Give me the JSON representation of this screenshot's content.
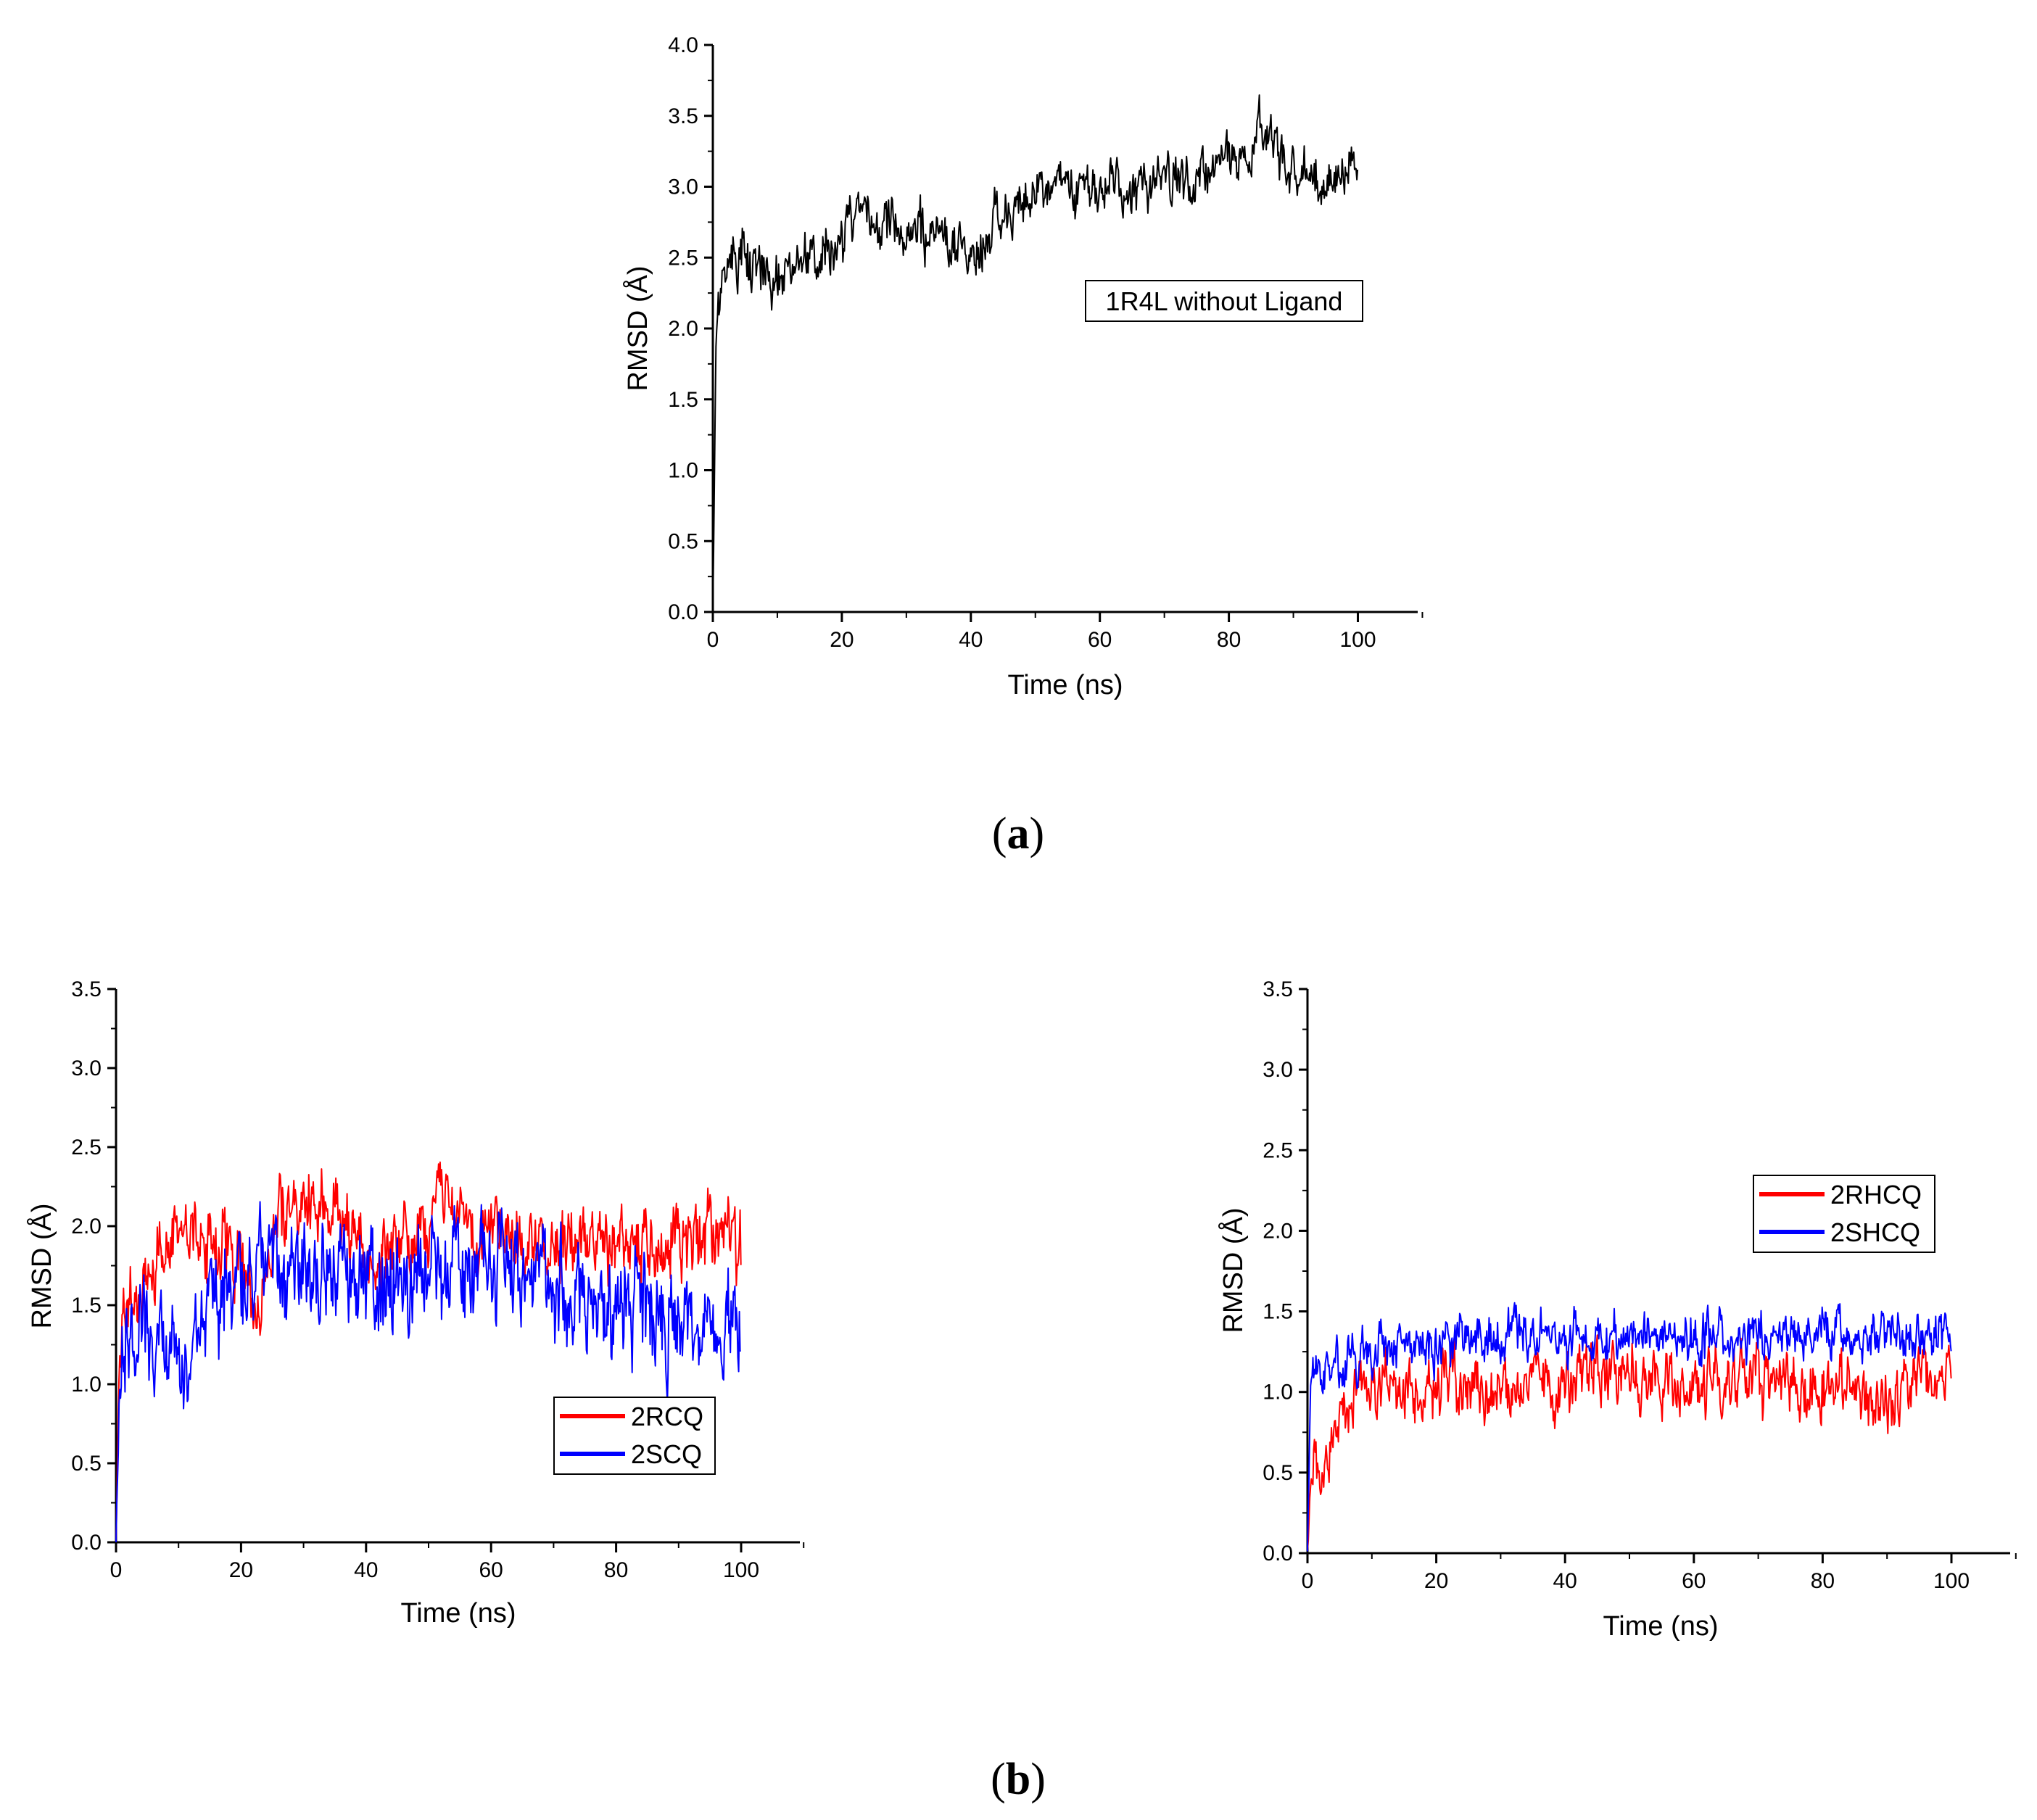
{
  "figure_labels": {
    "a_open": "(",
    "a_letter": "a",
    "a_close": ")",
    "b_open": "(",
    "b_letter": "b",
    "b_close": ")"
  },
  "colors": {
    "axis": "#000000",
    "red": "#ff0000",
    "blue": "#0000ff",
    "black": "#000000"
  },
  "chart_data": [
    {
      "id": "a",
      "type": "line",
      "title": "",
      "xlabel": "Time (ns)",
      "ylabel": "RMSD (Å)",
      "xlim": [
        0,
        110
      ],
      "ylim": [
        0,
        4.0
      ],
      "xticks": [
        "0",
        "20",
        "40",
        "60",
        "80",
        "100"
      ],
      "xtick_values": [
        0,
        20,
        40,
        60,
        80,
        100
      ],
      "yticks": [
        "0.0",
        "0.5",
        "1.0",
        "1.5",
        "2.0",
        "2.5",
        "3.0",
        "3.5",
        "4.0"
      ],
      "ytick_values": [
        0,
        0.5,
        1.0,
        1.5,
        2.0,
        2.5,
        3.0,
        3.5,
        4.0
      ],
      "legend": "boxed-label",
      "series": [
        {
          "name": "1R4L without Ligand",
          "color": "#000000",
          "noise": 0.16,
          "x": [
            0,
            0.5,
            1,
            2,
            3,
            5,
            8,
            10,
            13,
            15,
            17,
            18,
            20,
            22,
            23,
            25,
            30,
            35,
            40,
            41,
            43,
            45,
            48,
            50,
            55,
            58,
            60,
            65,
            70,
            75,
            80,
            83,
            85,
            87,
            88,
            90,
            95,
            100
          ],
          "values": [
            0.0,
            1.95,
            2.2,
            2.4,
            2.5,
            2.5,
            2.4,
            2.35,
            2.4,
            2.5,
            2.65,
            2.55,
            2.6,
            2.75,
            2.8,
            2.75,
            2.7,
            2.65,
            2.55,
            2.5,
            2.7,
            2.85,
            2.9,
            3.0,
            3.0,
            2.95,
            3.05,
            2.95,
            3.05,
            3.05,
            3.2,
            3.3,
            3.4,
            3.35,
            3.15,
            3.05,
            3.1,
            3.1
          ]
        }
      ]
    },
    {
      "id": "b-left",
      "type": "line",
      "title": "",
      "xlabel": "Time (ns)",
      "ylabel": "RMSD (Å)",
      "xlim": [
        0,
        110
      ],
      "ylim": [
        0,
        3.5
      ],
      "xticks": [
        "0",
        "20",
        "40",
        "60",
        "80",
        "100"
      ],
      "xtick_values": [
        0,
        20,
        40,
        60,
        80,
        100
      ],
      "yticks": [
        "0.0",
        "0.5",
        "1.0",
        "1.5",
        "2.0",
        "2.5",
        "3.0",
        "3.5"
      ],
      "ytick_values": [
        0,
        0.5,
        1.0,
        1.5,
        2.0,
        2.5,
        3.0,
        3.5
      ],
      "legend": "lower-center",
      "series": [
        {
          "name": "2RCQ",
          "color": "#ff0000",
          "noise": 0.2,
          "x": [
            0,
            0.5,
            1,
            3,
            5,
            8,
            10,
            15,
            20,
            22,
            23,
            25,
            26,
            30,
            35,
            38,
            40,
            45,
            50,
            52,
            53,
            55,
            60,
            70,
            80,
            90,
            95,
            98,
            100
          ],
          "values": [
            0.0,
            1.1,
            1.45,
            1.6,
            1.7,
            1.85,
            1.95,
            1.95,
            1.85,
            1.5,
            1.55,
            1.8,
            2.1,
            2.15,
            2.1,
            1.95,
            1.9,
            1.85,
            1.95,
            2.2,
            2.3,
            2.0,
            1.95,
            1.9,
            1.9,
            1.9,
            1.95,
            1.85,
            1.8
          ]
        },
        {
          "name": "2SCQ",
          "color": "#0000ff",
          "noise": 0.28,
          "x": [
            0,
            0.5,
            1,
            3,
            5,
            8,
            10,
            11,
            12,
            15,
            18,
            20,
            25,
            30,
            40,
            50,
            60,
            65,
            70,
            75,
            80,
            85,
            88,
            90,
            95,
            100
          ],
          "values": [
            0.0,
            0.85,
            1.2,
            1.4,
            1.35,
            1.3,
            1.15,
            1.05,
            1.25,
            1.55,
            1.7,
            1.75,
            1.75,
            1.75,
            1.7,
            1.72,
            1.75,
            1.7,
            1.6,
            1.5,
            1.5,
            1.45,
            1.35,
            1.4,
            1.4,
            1.45
          ]
        }
      ]
    },
    {
      "id": "b-right",
      "type": "line",
      "title": "",
      "xlabel": "Time (ns)",
      "ylabel": "RMSD (Å)",
      "xlim": [
        0,
        110
      ],
      "ylim": [
        0,
        3.5
      ],
      "xticks": [
        "0",
        "20",
        "40",
        "60",
        "80",
        "100"
      ],
      "xtick_values": [
        0,
        20,
        40,
        60,
        80,
        100
      ],
      "yticks": [
        "0.0",
        "0.5",
        "1.0",
        "1.5",
        "2.0",
        "2.5",
        "3.0",
        "3.5"
      ],
      "ytick_values": [
        0,
        0.5,
        1.0,
        1.5,
        2.0,
        2.5,
        3.0,
        3.5
      ],
      "legend": "upper-center",
      "series": [
        {
          "name": "2RHCQ",
          "color": "#ff0000",
          "noise": 0.17,
          "x": [
            0,
            0.5,
            1,
            2,
            3,
            4,
            5,
            8,
            10,
            20,
            30,
            40,
            45,
            46,
            50,
            60,
            70,
            80,
            90,
            91,
            92,
            100
          ],
          "values": [
            0.0,
            0.45,
            0.55,
            0.5,
            0.5,
            0.8,
            0.95,
            1.0,
            1.0,
            1.05,
            1.0,
            1.05,
            1.1,
            1.15,
            1.05,
            1.05,
            1.05,
            1.05,
            1.0,
            0.85,
            1.05,
            1.1
          ]
        },
        {
          "name": "2SHCQ",
          "color": "#0000ff",
          "noise": 0.13,
          "x": [
            0,
            0.5,
            1,
            3,
            5,
            10,
            15,
            20,
            25,
            30,
            40,
            50,
            60,
            70,
            80,
            90,
            100
          ],
          "values": [
            0.0,
            1.05,
            1.15,
            1.15,
            1.2,
            1.25,
            1.3,
            1.3,
            1.3,
            1.35,
            1.35,
            1.35,
            1.35,
            1.35,
            1.35,
            1.35,
            1.35
          ]
        }
      ]
    }
  ]
}
